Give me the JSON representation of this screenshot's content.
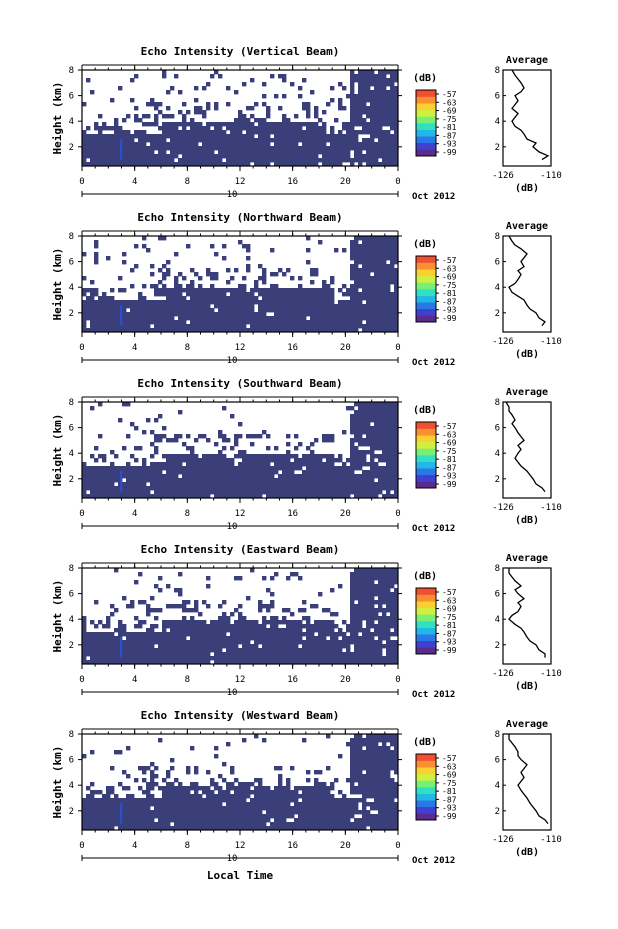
{
  "figure": {
    "xlabel_bottom": "Local Time",
    "date_label": "Oct 2012",
    "day_label": "10",
    "colorbar_unit": "(dB)",
    "colorbar_ticks": [
      "-57",
      "-63",
      "-69",
      "-75",
      "-81",
      "-87",
      "-93",
      "-99"
    ],
    "colorbar_colors": [
      "#5a2a8c",
      "#3f3fd0",
      "#2a78e8",
      "#22b8e6",
      "#30e0c0",
      "#78f078",
      "#d0f040",
      "#f8d030",
      "#f89030",
      "#f05030"
    ],
    "bg_color": "#3a3f7a"
  },
  "chart_data": [
    {
      "type": "heatmap",
      "title": "Echo Intensity (Vertical Beam)",
      "ylabel": "Height (km)",
      "xlim": [
        0,
        24
      ],
      "ylim": [
        0.5,
        8
      ],
      "x_ticks": [
        "0",
        "4",
        "8",
        "12",
        "16",
        "20",
        "0"
      ],
      "y_ticks": [
        "2",
        "4",
        "6",
        "8"
      ],
      "avg": {
        "title": "Average",
        "xlabel": "(dB)",
        "x_ticks": [
          "-126",
          "-110"
        ],
        "xlim": [
          -126,
          -110
        ],
        "y_ticks": [
          "2",
          "4",
          "6",
          "8"
        ],
        "profile": [
          [
            1.0,
            -113
          ],
          [
            1.3,
            -111
          ],
          [
            1.6,
            -114
          ],
          [
            2.0,
            -116
          ],
          [
            2.3,
            -115
          ],
          [
            2.6,
            -118
          ],
          [
            3.0,
            -119
          ],
          [
            3.3,
            -120
          ],
          [
            3.6,
            -122
          ],
          [
            4.0,
            -123
          ],
          [
            4.3,
            -122
          ],
          [
            4.6,
            -121
          ],
          [
            5.0,
            -123
          ],
          [
            5.3,
            -122
          ],
          [
            5.6,
            -121
          ],
          [
            6.0,
            -122
          ],
          [
            6.3,
            -120
          ],
          [
            6.6,
            -119
          ],
          [
            7.0,
            -120
          ],
          [
            7.3,
            -121
          ],
          [
            7.6,
            -122
          ],
          [
            8.0,
            -123
          ]
        ]
      }
    },
    {
      "type": "heatmap",
      "title": "Echo Intensity (Northward Beam)",
      "ylabel": "Height (km)",
      "xlim": [
        0,
        24
      ],
      "ylim": [
        0.5,
        8
      ],
      "x_ticks": [
        "0",
        "4",
        "8",
        "12",
        "16",
        "20",
        "0"
      ],
      "y_ticks": [
        "2",
        "4",
        "6",
        "8"
      ],
      "avg": {
        "title": "Average",
        "xlabel": "(dB)",
        "x_ticks": [
          "-126",
          "-110"
        ],
        "xlim": [
          -126,
          -110
        ],
        "y_ticks": [
          "2",
          "4",
          "6",
          "8"
        ],
        "profile": [
          [
            1.0,
            -113
          ],
          [
            1.3,
            -112
          ],
          [
            1.6,
            -114
          ],
          [
            2.0,
            -115
          ],
          [
            2.3,
            -117
          ],
          [
            2.6,
            -118
          ],
          [
            3.0,
            -119
          ],
          [
            3.3,
            -121
          ],
          [
            3.6,
            -123
          ],
          [
            4.0,
            -124
          ],
          [
            4.3,
            -122
          ],
          [
            4.6,
            -121
          ],
          [
            5.0,
            -120
          ],
          [
            5.3,
            -121
          ],
          [
            5.6,
            -119
          ],
          [
            6.0,
            -120
          ],
          [
            6.3,
            -119
          ],
          [
            6.6,
            -118
          ],
          [
            7.0,
            -120
          ],
          [
            7.3,
            -122
          ],
          [
            7.6,
            -123
          ],
          [
            8.0,
            -124
          ]
        ]
      }
    },
    {
      "type": "heatmap",
      "title": "Echo Intensity (Southward Beam)",
      "ylabel": "Height (km)",
      "xlim": [
        0,
        24
      ],
      "ylim": [
        0.5,
        8
      ],
      "x_ticks": [
        "0",
        "4",
        "8",
        "12",
        "16",
        "20",
        "0"
      ],
      "y_ticks": [
        "2",
        "4",
        "6",
        "8"
      ],
      "avg": {
        "title": "Average",
        "xlabel": "(dB)",
        "x_ticks": [
          "-126",
          "-110"
        ],
        "xlim": [
          -126,
          -110
        ],
        "y_ticks": [
          "2",
          "4",
          "6",
          "8"
        ],
        "profile": [
          [
            1.0,
            -112
          ],
          [
            1.3,
            -113
          ],
          [
            1.6,
            -115
          ],
          [
            2.0,
            -116
          ],
          [
            2.3,
            -117
          ],
          [
            2.6,
            -118
          ],
          [
            3.0,
            -120
          ],
          [
            3.3,
            -121
          ],
          [
            3.6,
            -122
          ],
          [
            4.0,
            -121
          ],
          [
            4.3,
            -120
          ],
          [
            4.6,
            -121
          ],
          [
            5.0,
            -119
          ],
          [
            5.3,
            -120
          ],
          [
            5.6,
            -121
          ],
          [
            6.0,
            -122
          ],
          [
            6.3,
            -123
          ],
          [
            6.6,
            -122
          ],
          [
            7.0,
            -123
          ],
          [
            7.3,
            -124
          ],
          [
            7.6,
            -124
          ],
          [
            8.0,
            -125
          ]
        ]
      }
    },
    {
      "type": "heatmap",
      "title": "Echo Intensity (Eastward Beam)",
      "ylabel": "Height (km)",
      "xlim": [
        0,
        24
      ],
      "ylim": [
        0.5,
        8
      ],
      "x_ticks": [
        "0",
        "4",
        "8",
        "12",
        "16",
        "20",
        "0"
      ],
      "y_ticks": [
        "2",
        "4",
        "6",
        "8"
      ],
      "avg": {
        "title": "Average",
        "xlabel": "(dB)",
        "x_ticks": [
          "-126",
          "-110"
        ],
        "xlim": [
          -126,
          -110
        ],
        "y_ticks": [
          "2",
          "4",
          "6",
          "8"
        ],
        "profile": [
          [
            1.0,
            -112
          ],
          [
            1.3,
            -112
          ],
          [
            1.6,
            -114
          ],
          [
            2.0,
            -115
          ],
          [
            2.3,
            -117
          ],
          [
            2.6,
            -118
          ],
          [
            3.0,
            -119
          ],
          [
            3.3,
            -120
          ],
          [
            3.6,
            -122
          ],
          [
            4.0,
            -124
          ],
          [
            4.3,
            -123
          ],
          [
            4.6,
            -121
          ],
          [
            5.0,
            -120
          ],
          [
            5.3,
            -121
          ],
          [
            5.6,
            -119
          ],
          [
            6.0,
            -121
          ],
          [
            6.3,
            -122
          ],
          [
            6.6,
            -120
          ],
          [
            7.0,
            -122
          ],
          [
            7.3,
            -123
          ],
          [
            7.6,
            -124
          ],
          [
            8.0,
            -124
          ]
        ]
      }
    },
    {
      "type": "heatmap",
      "title": "Echo Intensity (Westward Beam)",
      "ylabel": "Height (km)",
      "xlim": [
        0,
        24
      ],
      "ylim": [
        0.5,
        8
      ],
      "x_ticks": [
        "0",
        "4",
        "8",
        "12",
        "16",
        "20",
        "0"
      ],
      "y_ticks": [
        "2",
        "4",
        "6",
        "8"
      ],
      "avg": {
        "title": "Average",
        "xlabel": "(dB)",
        "x_ticks": [
          "-126",
          "-110"
        ],
        "xlim": [
          -126,
          -110
        ],
        "y_ticks": [
          "2",
          "4",
          "6",
          "8"
        ],
        "profile": [
          [
            1.0,
            -111
          ],
          [
            1.3,
            -112
          ],
          [
            1.6,
            -114
          ],
          [
            2.0,
            -115
          ],
          [
            2.3,
            -116
          ],
          [
            2.6,
            -117
          ],
          [
            3.0,
            -118
          ],
          [
            3.3,
            -119
          ],
          [
            3.6,
            -120
          ],
          [
            4.0,
            -121
          ],
          [
            4.3,
            -120
          ],
          [
            4.6,
            -119
          ],
          [
            5.0,
            -120
          ],
          [
            5.3,
            -119
          ],
          [
            5.6,
            -118
          ],
          [
            6.0,
            -120
          ],
          [
            6.3,
            -121
          ],
          [
            6.6,
            -121
          ],
          [
            7.0,
            -122
          ],
          [
            7.3,
            -123
          ],
          [
            7.6,
            -124
          ],
          [
            8.0,
            -124
          ]
        ]
      }
    }
  ]
}
